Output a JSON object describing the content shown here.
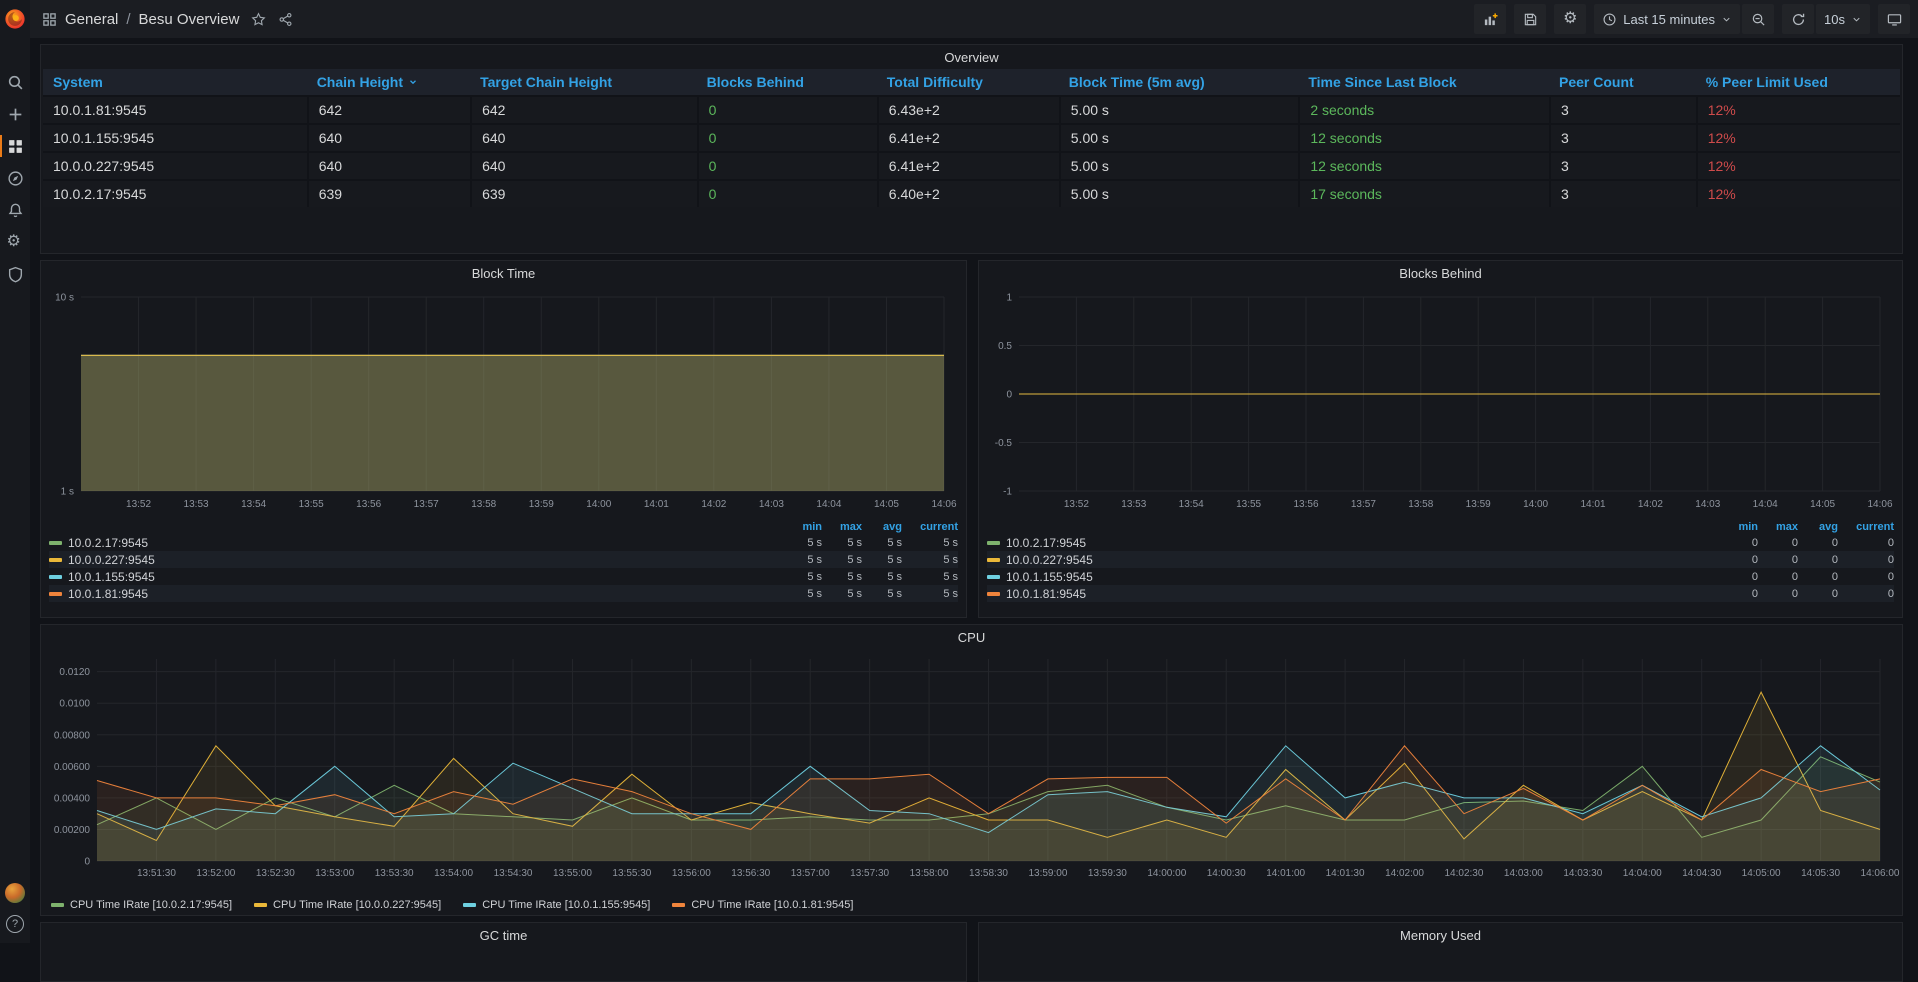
{
  "navbar": {
    "breadcrumb": {
      "section": "General",
      "separator": "/",
      "title": "Besu Overview"
    },
    "time_range": "Last 15 minutes",
    "refresh_interval": "10s"
  },
  "sidebar": {
    "items": [
      "search",
      "create",
      "dashboards",
      "explore",
      "alerting",
      "configuration",
      "server-admin"
    ],
    "active_item": "dashboards",
    "help_glyph": "?"
  },
  "colors": {
    "blue": "#33a2e5",
    "green": "#5cb85c",
    "red": "#cf4b4b",
    "orange_accent": "#eb7b18",
    "series": {
      "green": "#7EB26D",
      "yellow": "#EAB839",
      "cyan": "#6ED0E0",
      "orange": "#EF843C"
    }
  },
  "overview_table": {
    "title": "Overview",
    "columns": [
      {
        "key": "system",
        "label": "System",
        "sorted": false,
        "value_color": null
      },
      {
        "key": "chain_height",
        "label": "Chain Height",
        "sorted": true,
        "value_color": null
      },
      {
        "key": "target_chain_height",
        "label": "Target Chain Height",
        "sorted": false,
        "value_color": null
      },
      {
        "key": "blocks_behind",
        "label": "Blocks Behind",
        "sorted": false,
        "value_color": "green"
      },
      {
        "key": "total_difficulty",
        "label": "Total Difficulty",
        "sorted": false,
        "value_color": null
      },
      {
        "key": "block_time",
        "label": "Block Time (5m avg)",
        "sorted": false,
        "value_color": null
      },
      {
        "key": "time_since_last_block",
        "label": "Time Since Last Block",
        "sorted": false,
        "value_color": "green"
      },
      {
        "key": "peer_count",
        "label": "Peer Count",
        "sorted": false,
        "value_color": null
      },
      {
        "key": "peer_limit_used",
        "label": "% Peer Limit Used",
        "sorted": false,
        "value_color": "red"
      }
    ],
    "rows": [
      {
        "system": "10.0.1.81:9545",
        "chain_height": "642",
        "target_chain_height": "642",
        "blocks_behind": "0",
        "total_difficulty": "6.43e+2",
        "block_time": "5.00 s",
        "time_since_last_block": "2 seconds",
        "peer_count": "3",
        "peer_limit_used": "12%"
      },
      {
        "system": "10.0.1.155:9545",
        "chain_height": "640",
        "target_chain_height": "640",
        "blocks_behind": "0",
        "total_difficulty": "6.41e+2",
        "block_time": "5.00 s",
        "time_since_last_block": "12 seconds",
        "peer_count": "3",
        "peer_limit_used": "12%"
      },
      {
        "system": "10.0.0.227:9545",
        "chain_height": "640",
        "target_chain_height": "640",
        "blocks_behind": "0",
        "total_difficulty": "6.41e+2",
        "block_time": "5.00 s",
        "time_since_last_block": "12 seconds",
        "peer_count": "3",
        "peer_limit_used": "12%"
      },
      {
        "system": "10.0.2.17:9545",
        "chain_height": "639",
        "target_chain_height": "639",
        "blocks_behind": "0",
        "total_difficulty": "6.40e+2",
        "block_time": "5.00 s",
        "time_since_last_block": "17 seconds",
        "peer_count": "3",
        "peer_limit_used": "12%"
      }
    ]
  },
  "chart_data": [
    {
      "id": "block_time",
      "type": "area",
      "title": "Block Time",
      "y_scale": "log",
      "y_min": 1,
      "y_max": 10,
      "y_ticks": [
        {
          "v": 10,
          "label": "10 s"
        },
        {
          "v": 1,
          "label": "1 s"
        }
      ],
      "x_domain_seconds": 900,
      "x_ticks": [
        {
          "s": 60,
          "label": "13:52"
        },
        {
          "s": 120,
          "label": "13:53"
        },
        {
          "s": 180,
          "label": "13:54"
        },
        {
          "s": 240,
          "label": "13:55"
        },
        {
          "s": 300,
          "label": "13:56"
        },
        {
          "s": 360,
          "label": "13:57"
        },
        {
          "s": 420,
          "label": "13:58"
        },
        {
          "s": 480,
          "label": "13:59"
        },
        {
          "s": 540,
          "label": "14:00"
        },
        {
          "s": 600,
          "label": "14:01"
        },
        {
          "s": 660,
          "label": "14:02"
        },
        {
          "s": 720,
          "label": "14:03"
        },
        {
          "s": 780,
          "label": "14:04"
        },
        {
          "s": 840,
          "label": "14:05"
        },
        {
          "s": 900,
          "label": "14:06"
        }
      ],
      "legend_stat_headers": [
        "min",
        "max",
        "avg",
        "current"
      ],
      "series": [
        {
          "name": "10.0.2.17:9545",
          "color": "#7EB26D",
          "x": [
            0,
            900
          ],
          "values": [
            5,
            5
          ],
          "stats": [
            "5 s",
            "5 s",
            "5 s",
            "5 s"
          ]
        },
        {
          "name": "10.0.0.227:9545",
          "color": "#EAB839",
          "x": [
            0,
            900
          ],
          "values": [
            5,
            5
          ],
          "stats": [
            "5 s",
            "5 s",
            "5 s",
            "5 s"
          ]
        },
        {
          "name": "10.0.1.155:9545",
          "color": "#6ED0E0",
          "x": [
            0,
            900
          ],
          "values": [
            5,
            5
          ],
          "stats": [
            "5 s",
            "5 s",
            "5 s",
            "5 s"
          ]
        },
        {
          "name": "10.0.1.81:9545",
          "color": "#EF843C",
          "x": [
            0,
            900
          ],
          "values": [
            5,
            5
          ],
          "stats": [
            "5 s",
            "5 s",
            "5 s",
            "5 s"
          ]
        }
      ]
    },
    {
      "id": "blocks_behind",
      "type": "line",
      "title": "Blocks Behind",
      "y_scale": "linear",
      "y_min": -1,
      "y_max": 1,
      "y_ticks": [
        {
          "v": 1,
          "label": "1"
        },
        {
          "v": 0.5,
          "label": "0.5"
        },
        {
          "v": 0,
          "label": "0"
        },
        {
          "v": -0.5,
          "label": "-0.5"
        },
        {
          "v": -1,
          "label": "-1"
        }
      ],
      "x_domain_seconds": 900,
      "x_ticks": [
        {
          "s": 60,
          "label": "13:52"
        },
        {
          "s": 120,
          "label": "13:53"
        },
        {
          "s": 180,
          "label": "13:54"
        },
        {
          "s": 240,
          "label": "13:55"
        },
        {
          "s": 300,
          "label": "13:56"
        },
        {
          "s": 360,
          "label": "13:57"
        },
        {
          "s": 420,
          "label": "13:58"
        },
        {
          "s": 480,
          "label": "13:59"
        },
        {
          "s": 540,
          "label": "14:00"
        },
        {
          "s": 600,
          "label": "14:01"
        },
        {
          "s": 660,
          "label": "14:02"
        },
        {
          "s": 720,
          "label": "14:03"
        },
        {
          "s": 780,
          "label": "14:04"
        },
        {
          "s": 840,
          "label": "14:05"
        },
        {
          "s": 900,
          "label": "14:06"
        }
      ],
      "legend_stat_headers": [
        "min",
        "max",
        "avg",
        "current"
      ],
      "series": [
        {
          "name": "10.0.2.17:9545",
          "color": "#7EB26D",
          "x": [
            0,
            900
          ],
          "values": [
            0,
            0
          ],
          "stats": [
            "0",
            "0",
            "0",
            "0"
          ]
        },
        {
          "name": "10.0.0.227:9545",
          "color": "#EAB839",
          "x": [
            0,
            900
          ],
          "values": [
            0,
            0
          ],
          "stats": [
            "0",
            "0",
            "0",
            "0"
          ]
        },
        {
          "name": "10.0.1.155:9545",
          "color": "#6ED0E0",
          "x": [
            0,
            900
          ],
          "values": [
            0,
            0
          ],
          "stats": [
            "0",
            "0",
            "0",
            "0"
          ]
        },
        {
          "name": "10.0.1.81:9545",
          "color": "#EF843C",
          "x": [
            0,
            900
          ],
          "values": [
            0,
            0
          ],
          "stats": [
            "0",
            "0",
            "0",
            "0"
          ]
        }
      ]
    },
    {
      "id": "cpu",
      "type": "area",
      "title": "CPU",
      "y_scale": "linear",
      "y_min": 0,
      "y_max": 0.0128,
      "y_ticks": [
        {
          "v": 0,
          "label": "0"
        },
        {
          "v": 0.002,
          "label": "0.00200"
        },
        {
          "v": 0.004,
          "label": "0.00400"
        },
        {
          "v": 0.006,
          "label": "0.00600"
        },
        {
          "v": 0.008,
          "label": "0.00800"
        },
        {
          "v": 0.01,
          "label": "0.0100"
        },
        {
          "v": 0.012,
          "label": "0.0120"
        }
      ],
      "x_domain_seconds": 900,
      "x_ticks": [
        {
          "s": 30,
          "label": "13:51:30"
        },
        {
          "s": 60,
          "label": "13:52:00"
        },
        {
          "s": 90,
          "label": "13:52:30"
        },
        {
          "s": 120,
          "label": "13:53:00"
        },
        {
          "s": 150,
          "label": "13:53:30"
        },
        {
          "s": 180,
          "label": "13:54:00"
        },
        {
          "s": 210,
          "label": "13:54:30"
        },
        {
          "s": 240,
          "label": "13:55:00"
        },
        {
          "s": 270,
          "label": "13:55:30"
        },
        {
          "s": 300,
          "label": "13:56:00"
        },
        {
          "s": 330,
          "label": "13:56:30"
        },
        {
          "s": 360,
          "label": "13:57:00"
        },
        {
          "s": 390,
          "label": "13:57:30"
        },
        {
          "s": 420,
          "label": "13:58:00"
        },
        {
          "s": 450,
          "label": "13:58:30"
        },
        {
          "s": 480,
          "label": "13:59:00"
        },
        {
          "s": 510,
          "label": "13:59:30"
        },
        {
          "s": 540,
          "label": "14:00:00"
        },
        {
          "s": 570,
          "label": "14:00:30"
        },
        {
          "s": 600,
          "label": "14:01:00"
        },
        {
          "s": 630,
          "label": "14:01:30"
        },
        {
          "s": 660,
          "label": "14:02:00"
        },
        {
          "s": 690,
          "label": "14:02:30"
        },
        {
          "s": 720,
          "label": "14:03:00"
        },
        {
          "s": 750,
          "label": "14:03:30"
        },
        {
          "s": 780,
          "label": "14:04:00"
        },
        {
          "s": 810,
          "label": "14:04:30"
        },
        {
          "s": 840,
          "label": "14:05:00"
        },
        {
          "s": 870,
          "label": "14:05:30"
        },
        {
          "s": 900,
          "label": "14:06:00"
        }
      ],
      "x_step_seconds": 30,
      "series": [
        {
          "name": "CPU Time IRate [10.0.2.17:9545]",
          "color": "#7EB26D",
          "values": [
            0.0023,
            0.004,
            0.002,
            0.004,
            0.0028,
            0.0048,
            0.003,
            0.0028,
            0.0026,
            0.004,
            0.0026,
            0.0026,
            0.0028,
            0.0026,
            0.0026,
            0.003,
            0.0044,
            0.0048,
            0.0034,
            0.0026,
            0.0035,
            0.0026,
            0.0026,
            0.0037,
            0.0038,
            0.0032,
            0.006,
            0.0015,
            0.0026,
            0.0066,
            0.005
          ]
        },
        {
          "name": "CPU Time IRate [10.0.0.227:9545]",
          "color": "#EAB839",
          "values": [
            0.003,
            0.0013,
            0.0073,
            0.0035,
            0.0028,
            0.0022,
            0.0065,
            0.003,
            0.0022,
            0.0055,
            0.0026,
            0.0037,
            0.003,
            0.0024,
            0.004,
            0.0026,
            0.0026,
            0.0015,
            0.0026,
            0.0015,
            0.0058,
            0.0026,
            0.0062,
            0.0014,
            0.0048,
            0.0026,
            0.0044,
            0.0026,
            0.0107,
            0.0032,
            0.002
          ]
        },
        {
          "name": "CPU Time IRate [10.0.1.155:9545]",
          "color": "#6ED0E0",
          "values": [
            0.0032,
            0.002,
            0.0033,
            0.003,
            0.006,
            0.0028,
            0.003,
            0.0062,
            0.0046,
            0.003,
            0.003,
            0.003,
            0.006,
            0.0032,
            0.003,
            0.0018,
            0.0042,
            0.0044,
            0.0034,
            0.0028,
            0.0073,
            0.004,
            0.005,
            0.004,
            0.004,
            0.003,
            0.0048,
            0.0028,
            0.004,
            0.0073,
            0.0045
          ]
        },
        {
          "name": "CPU Time IRate [10.0.1.81:9545]",
          "color": "#EF843C",
          "values": [
            0.0051,
            0.004,
            0.004,
            0.0035,
            0.0042,
            0.003,
            0.0044,
            0.0036,
            0.0052,
            0.0044,
            0.003,
            0.002,
            0.0052,
            0.0052,
            0.0055,
            0.003,
            0.0052,
            0.0053,
            0.0053,
            0.0024,
            0.0052,
            0.0026,
            0.0073,
            0.003,
            0.0046,
            0.0026,
            0.0048,
            0.0026,
            0.0058,
            0.0044,
            0.0052
          ]
        }
      ]
    }
  ],
  "bottom_panels": {
    "gc_time": "GC time",
    "memory_used": "Memory Used"
  }
}
